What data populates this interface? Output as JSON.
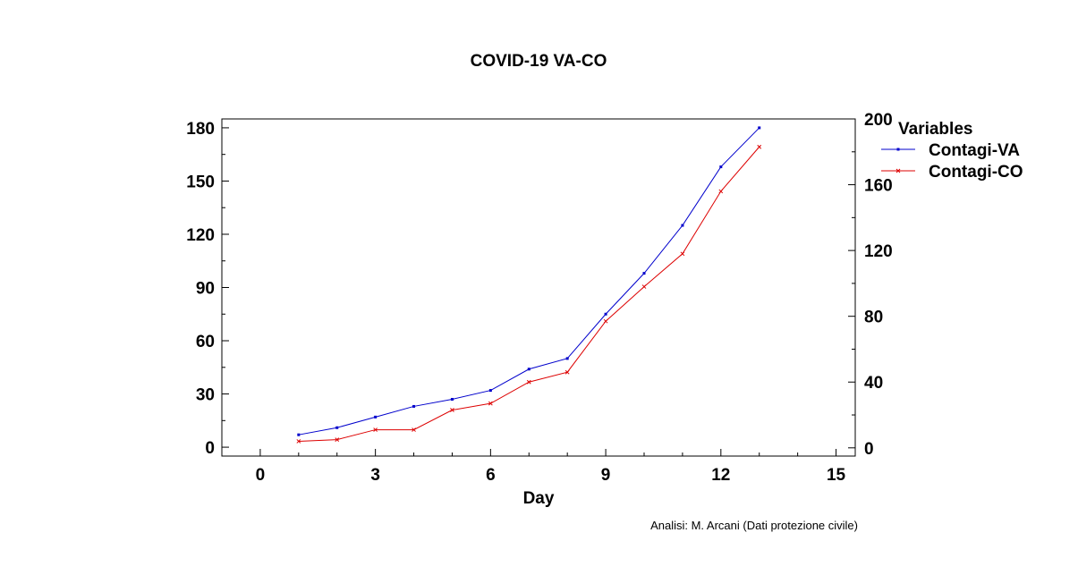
{
  "chart_data": {
    "type": "line",
    "title": "COVID-19 VA-CO",
    "xlabel": "Day",
    "ylabel": "",
    "xlim": [
      -1,
      15.5
    ],
    "ylim": [
      -5,
      185
    ],
    "ylim_right": [
      -5,
      200
    ],
    "x_ticks": [
      "0",
      "3",
      "6",
      "9",
      "12",
      "15"
    ],
    "y_ticks_left": [
      "0",
      "30",
      "60",
      "90",
      "120",
      "150",
      "180"
    ],
    "y_ticks_right": [
      "0",
      "40",
      "80",
      "120",
      "160",
      "200"
    ],
    "legend_title": "Variables",
    "legend_position": "right",
    "x": [
      1,
      2,
      3,
      4,
      5,
      6,
      7,
      8,
      9,
      10,
      11,
      12,
      13
    ],
    "series": [
      {
        "name": "Contagi-VA",
        "color": "#0000cc",
        "marker": "dot",
        "axis": "left",
        "values": [
          7,
          11,
          17,
          23,
          27,
          32,
          44,
          50,
          75,
          98,
          125,
          158,
          180
        ]
      },
      {
        "name": "Contagi-CO",
        "color": "#dd0000",
        "marker": "x",
        "axis": "right",
        "values": [
          4,
          5,
          11,
          11,
          23,
          27,
          40,
          46,
          77,
          98,
          118,
          156,
          183
        ]
      }
    ],
    "annotation": "Analisi: M. Arcani (Dati protezione civile)"
  }
}
